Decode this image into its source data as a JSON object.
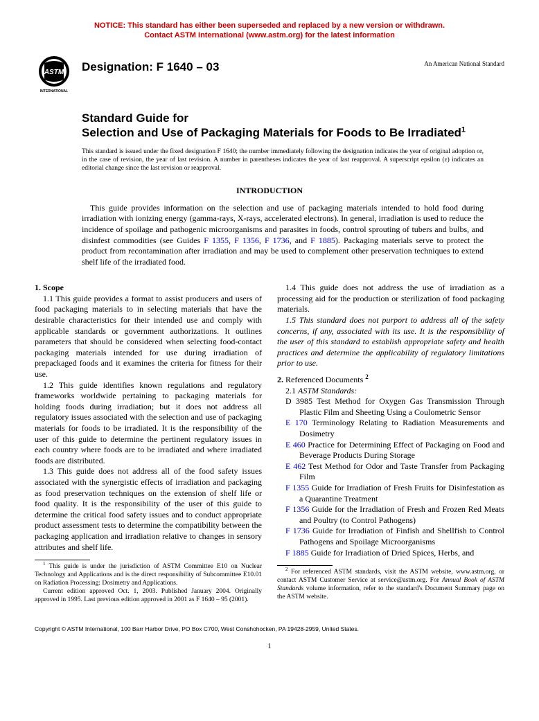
{
  "notice": {
    "line1": "NOTICE: This standard has either been superseded and replaced by a new version or withdrawn.",
    "line2": "Contact ASTM International (www.astm.org) for the latest information",
    "color": "#cc0000"
  },
  "header": {
    "designation_label": "Designation: F 1640 – 03",
    "ansi_note": "An American National Standard",
    "logo_label_top": "INTERNATIONAL"
  },
  "title": {
    "line1": "Standard Guide for",
    "line2": "Selection and Use of Packaging Materials for Foods to Be Irradiated",
    "sup": "1"
  },
  "issuance": "This standard is issued under the fixed designation F 1640; the number immediately following the designation indicates the year of original adoption or, in the case of revision, the year of last revision. A number in parentheses indicates the year of last reapproval. A superscript epsilon (ε) indicates an editorial change since the last revision or reapproval.",
  "intro": {
    "heading": "INTRODUCTION",
    "body_pre": "This guide provides information on the selection and use of packaging materials intended to hold food during irradiation with ionizing energy (gamma-rays, X-rays, accelerated electrons). In general, irradiation is used to reduce the incidence of spoilage and pathogenic microorganisms and parasites in foods, control sprouting of tubers and bulbs, and disinfest commodities (see Guides ",
    "links": {
      "a": "F 1355",
      "b": "F 1356",
      "c": "F 1736",
      "d": "F 1885"
    },
    "body_post": "). Packaging materials serve to protect the product from recontamination after irradiation and may be used to complement other preservation techniques to extend shelf life of the irradiated food."
  },
  "sec1": {
    "heading": "1. Scope",
    "p1": "1.1 This guide provides a format to assist producers and users of food packaging materials to in selecting materials that have the desirable characteristics for their intended use and comply with applicable standards or government authorizations. It outlines parameters that should be considered when selecting food-contact packaging materials intended for use during irradiation of prepackaged foods and it examines the criteria for fitness for their use.",
    "p2": "1.2 This guide identifies known regulations and regulatory frameworks worldwide pertaining to packaging materials for holding foods during irradiation; but it does not address all regulatory issues associated with the selection and use of packaging materials for foods to be irradiated. It is the responsibility of the user of this guide to determine the pertinent regulatory issues in each country where foods are to be irradiated and where irradiated foods are distributed.",
    "p3": "1.3 This guide does not address all of the food safety issues associated with the synergistic effects of irradiation and packaging as food preservation techniques on the extension of shelf life or food quality. It is the responsibility of the user of this guide to determine the critical food safety issues and to conduct appropriate product assessment tests to determine the compatibility between the packaging application and irradiation relative to changes in sensory attributes and shelf life.",
    "p4": "1.4 This guide does not address the use of irradiation as a processing aid for the production or sterilization of food packaging materials.",
    "p5": "1.5 This standard does not purport to address all of the safety concerns, if any, associated with its use. It is the responsibility of the user of this standard to establish appropriate safety and health practices and determine the applicability of regulatory limitations prior to use."
  },
  "sec2": {
    "heading": "2.",
    "heading_rest": " Referenced Documents",
    "sup": "2",
    "sub": "2.1 ",
    "sub_it": "ASTM Standards:",
    "items": [
      {
        "code": "D 3985",
        "link": false,
        "text": "Test Method for Oxygen Gas Transmission Through Plastic Film and Sheeting Using a Coulometric Sensor"
      },
      {
        "code": "E 170",
        "link": true,
        "text": "Terminology Relating to Radiation Measurements and Dosimetry"
      },
      {
        "code": "E 460",
        "link": true,
        "text": "Practice for Determining Effect of Packaging on Food and Beverage Products During Storage"
      },
      {
        "code": "E 462",
        "link": true,
        "text": "Test Method for Odor and Taste Transfer from Packaging Film"
      },
      {
        "code": "F 1355",
        "link": true,
        "text": "Guide for Irradiation of Fresh Fruits for Disinfestation as a Quarantine Treatment"
      },
      {
        "code": "F 1356",
        "link": true,
        "text": "Guide for the Irradiation of Fresh and Frozen Red Meats and Poultry (to Control Pathogens)"
      },
      {
        "code": "F 1736",
        "link": true,
        "text": "Guide for Irradiation of Finfish and Shellfish to Control Pathogens and Spoilage Microorganisms"
      },
      {
        "code": "F 1885",
        "link": true,
        "text": "Guide for Irradiation of Dried Spices, Herbs, and"
      }
    ]
  },
  "footnotes": {
    "left1_a": " This guide is under the jurisdiction of ASTM Committee E10 on Nuclear Technology and Applications and is the direct responsibility of Subcommittee E10.01 on Radiation Processing: Dosimetry and Applications.",
    "left2": "Current edition approved Oct. 1, 2003. Published January 2004. Originally approved in 1995. Last previous edition approved in 2001 as F 1640 – 95 (2001).",
    "right_a": " For referenced ASTM standards, visit the ASTM website, www.astm.org, or contact ASTM Customer Service at service@astm.org. For ",
    "right_it": "Annual Book of ASTM Standards",
    "right_b": " volume information, refer to the standard's Document Summary page on the ASTM website."
  },
  "copyright": "Copyright © ASTM International, 100 Barr Harbor Drive, PO Box C700, West Conshohocken, PA 19428-2959, United States.",
  "pagenum": "1",
  "link_color": "#0000cc"
}
